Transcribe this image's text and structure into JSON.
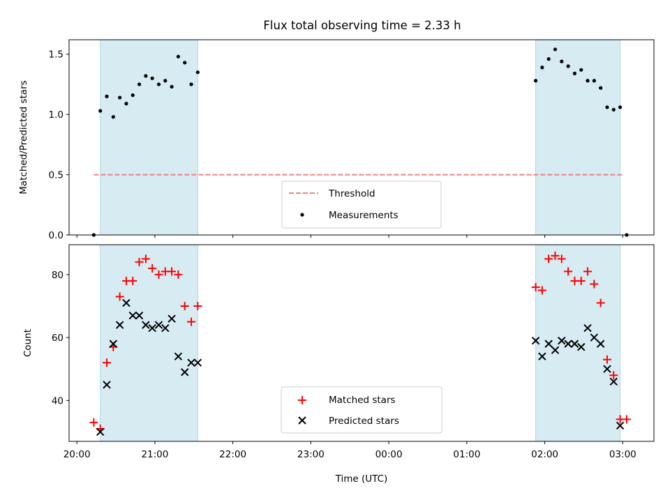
{
  "chart_data": [
    {
      "type": "scatter",
      "title": "Flux total observing time = 2.33 h",
      "ylabel": "Matched/Predicted stars",
      "xlabel": "",
      "x_ticks": [
        "20:00",
        "21:00",
        "22:00",
        "23:00",
        "00:00",
        "01:00",
        "02:00",
        "03:00"
      ],
      "x_range_hours": [
        19.9,
        27.4
      ],
      "ylim": [
        0,
        1.62
      ],
      "y_ticks": [
        "0.0",
        "0.5",
        "1.0",
        "1.5"
      ],
      "shaded_intervals": [
        [
          "20:18",
          "21:33"
        ],
        [
          "01:53",
          "02:58"
        ]
      ],
      "shade_color": "#add8e6",
      "legend": "lower center",
      "threshold": {
        "name": "Threshold",
        "value": 0.5,
        "x_from": "20:13",
        "x_to": "03:00",
        "color": "#f08080",
        "style": "dashed"
      },
      "series": [
        {
          "name": "Measurements",
          "color": "#000000",
          "marker": "dot",
          "points": [
            [
              "20:13",
              0.0
            ],
            [
              "20:18",
              1.03
            ],
            [
              "20:23",
              1.15
            ],
            [
              "20:28",
              0.98
            ],
            [
              "20:33",
              1.14
            ],
            [
              "20:38",
              1.09
            ],
            [
              "20:43",
              1.16
            ],
            [
              "20:48",
              1.25
            ],
            [
              "20:53",
              1.32
            ],
            [
              "20:58",
              1.3
            ],
            [
              "21:03",
              1.25
            ],
            [
              "21:08",
              1.28
            ],
            [
              "21:13",
              1.23
            ],
            [
              "21:18",
              1.48
            ],
            [
              "21:23",
              1.43
            ],
            [
              "21:28",
              1.25
            ],
            [
              "21:33",
              1.35
            ],
            [
              "01:53",
              1.28
            ],
            [
              "01:58",
              1.39
            ],
            [
              "02:03",
              1.46
            ],
            [
              "02:08",
              1.54
            ],
            [
              "02:13",
              1.44
            ],
            [
              "02:18",
              1.4
            ],
            [
              "02:23",
              1.34
            ],
            [
              "02:28",
              1.37
            ],
            [
              "02:33",
              1.28
            ],
            [
              "02:38",
              1.28
            ],
            [
              "02:43",
              1.22
            ],
            [
              "02:48",
              1.06
            ],
            [
              "02:53",
              1.04
            ],
            [
              "02:58",
              1.06
            ],
            [
              "03:03",
              0.0
            ]
          ]
        }
      ]
    },
    {
      "type": "scatter",
      "title": "",
      "ylabel": "Count",
      "xlabel": "Time (UTC)",
      "x_ticks": [
        "20:00",
        "21:00",
        "22:00",
        "23:00",
        "00:00",
        "01:00",
        "02:00",
        "03:00"
      ],
      "x_range_hours": [
        19.9,
        27.4
      ],
      "ylim": [
        27,
        89.5
      ],
      "y_ticks": [
        "40",
        "60",
        "80"
      ],
      "shaded_intervals": [
        [
          "20:18",
          "21:33"
        ],
        [
          "01:53",
          "02:58"
        ]
      ],
      "shade_color": "#add8e6",
      "legend": "lower center",
      "series": [
        {
          "name": "Matched stars",
          "color": "#ff0000",
          "marker": "plus",
          "points": [
            [
              "20:13",
              33
            ],
            [
              "20:18",
              31
            ],
            [
              "20:23",
              52
            ],
            [
              "20:28",
              57
            ],
            [
              "20:33",
              73
            ],
            [
              "20:38",
              78
            ],
            [
              "20:43",
              78
            ],
            [
              "20:48",
              84
            ],
            [
              "20:53",
              85
            ],
            [
              "20:58",
              82
            ],
            [
              "21:03",
              80
            ],
            [
              "21:08",
              81
            ],
            [
              "21:13",
              81
            ],
            [
              "21:18",
              80
            ],
            [
              "21:23",
              70
            ],
            [
              "21:28",
              65
            ],
            [
              "21:33",
              70
            ],
            [
              "01:53",
              76
            ],
            [
              "01:58",
              75
            ],
            [
              "02:03",
              85
            ],
            [
              "02:08",
              86
            ],
            [
              "02:13",
              85
            ],
            [
              "02:18",
              81
            ],
            [
              "02:23",
              78
            ],
            [
              "02:28",
              78
            ],
            [
              "02:33",
              81
            ],
            [
              "02:38",
              77
            ],
            [
              "02:43",
              71
            ],
            [
              "02:48",
              53
            ],
            [
              "02:53",
              48
            ],
            [
              "02:58",
              34
            ],
            [
              "03:03",
              34
            ]
          ]
        },
        {
          "name": "Predicted stars",
          "color": "#000000",
          "marker": "x",
          "points": [
            [
              "20:18",
              30
            ],
            [
              "20:23",
              45
            ],
            [
              "20:28",
              58
            ],
            [
              "20:33",
              64
            ],
            [
              "20:38",
              71
            ],
            [
              "20:43",
              67
            ],
            [
              "20:48",
              67
            ],
            [
              "20:53",
              64
            ],
            [
              "20:58",
              63
            ],
            [
              "21:03",
              64
            ],
            [
              "21:08",
              63
            ],
            [
              "21:13",
              66
            ],
            [
              "21:18",
              54
            ],
            [
              "21:23",
              49
            ],
            [
              "21:28",
              52
            ],
            [
              "21:33",
              52
            ],
            [
              "01:53",
              59
            ],
            [
              "01:58",
              54
            ],
            [
              "02:03",
              58
            ],
            [
              "02:08",
              56
            ],
            [
              "02:13",
              59
            ],
            [
              "02:18",
              58
            ],
            [
              "02:23",
              58
            ],
            [
              "02:28",
              57
            ],
            [
              "02:33",
              63
            ],
            [
              "02:38",
              60
            ],
            [
              "02:43",
              58
            ],
            [
              "02:48",
              50
            ],
            [
              "02:53",
              46
            ],
            [
              "02:58",
              32
            ]
          ]
        }
      ]
    }
  ]
}
